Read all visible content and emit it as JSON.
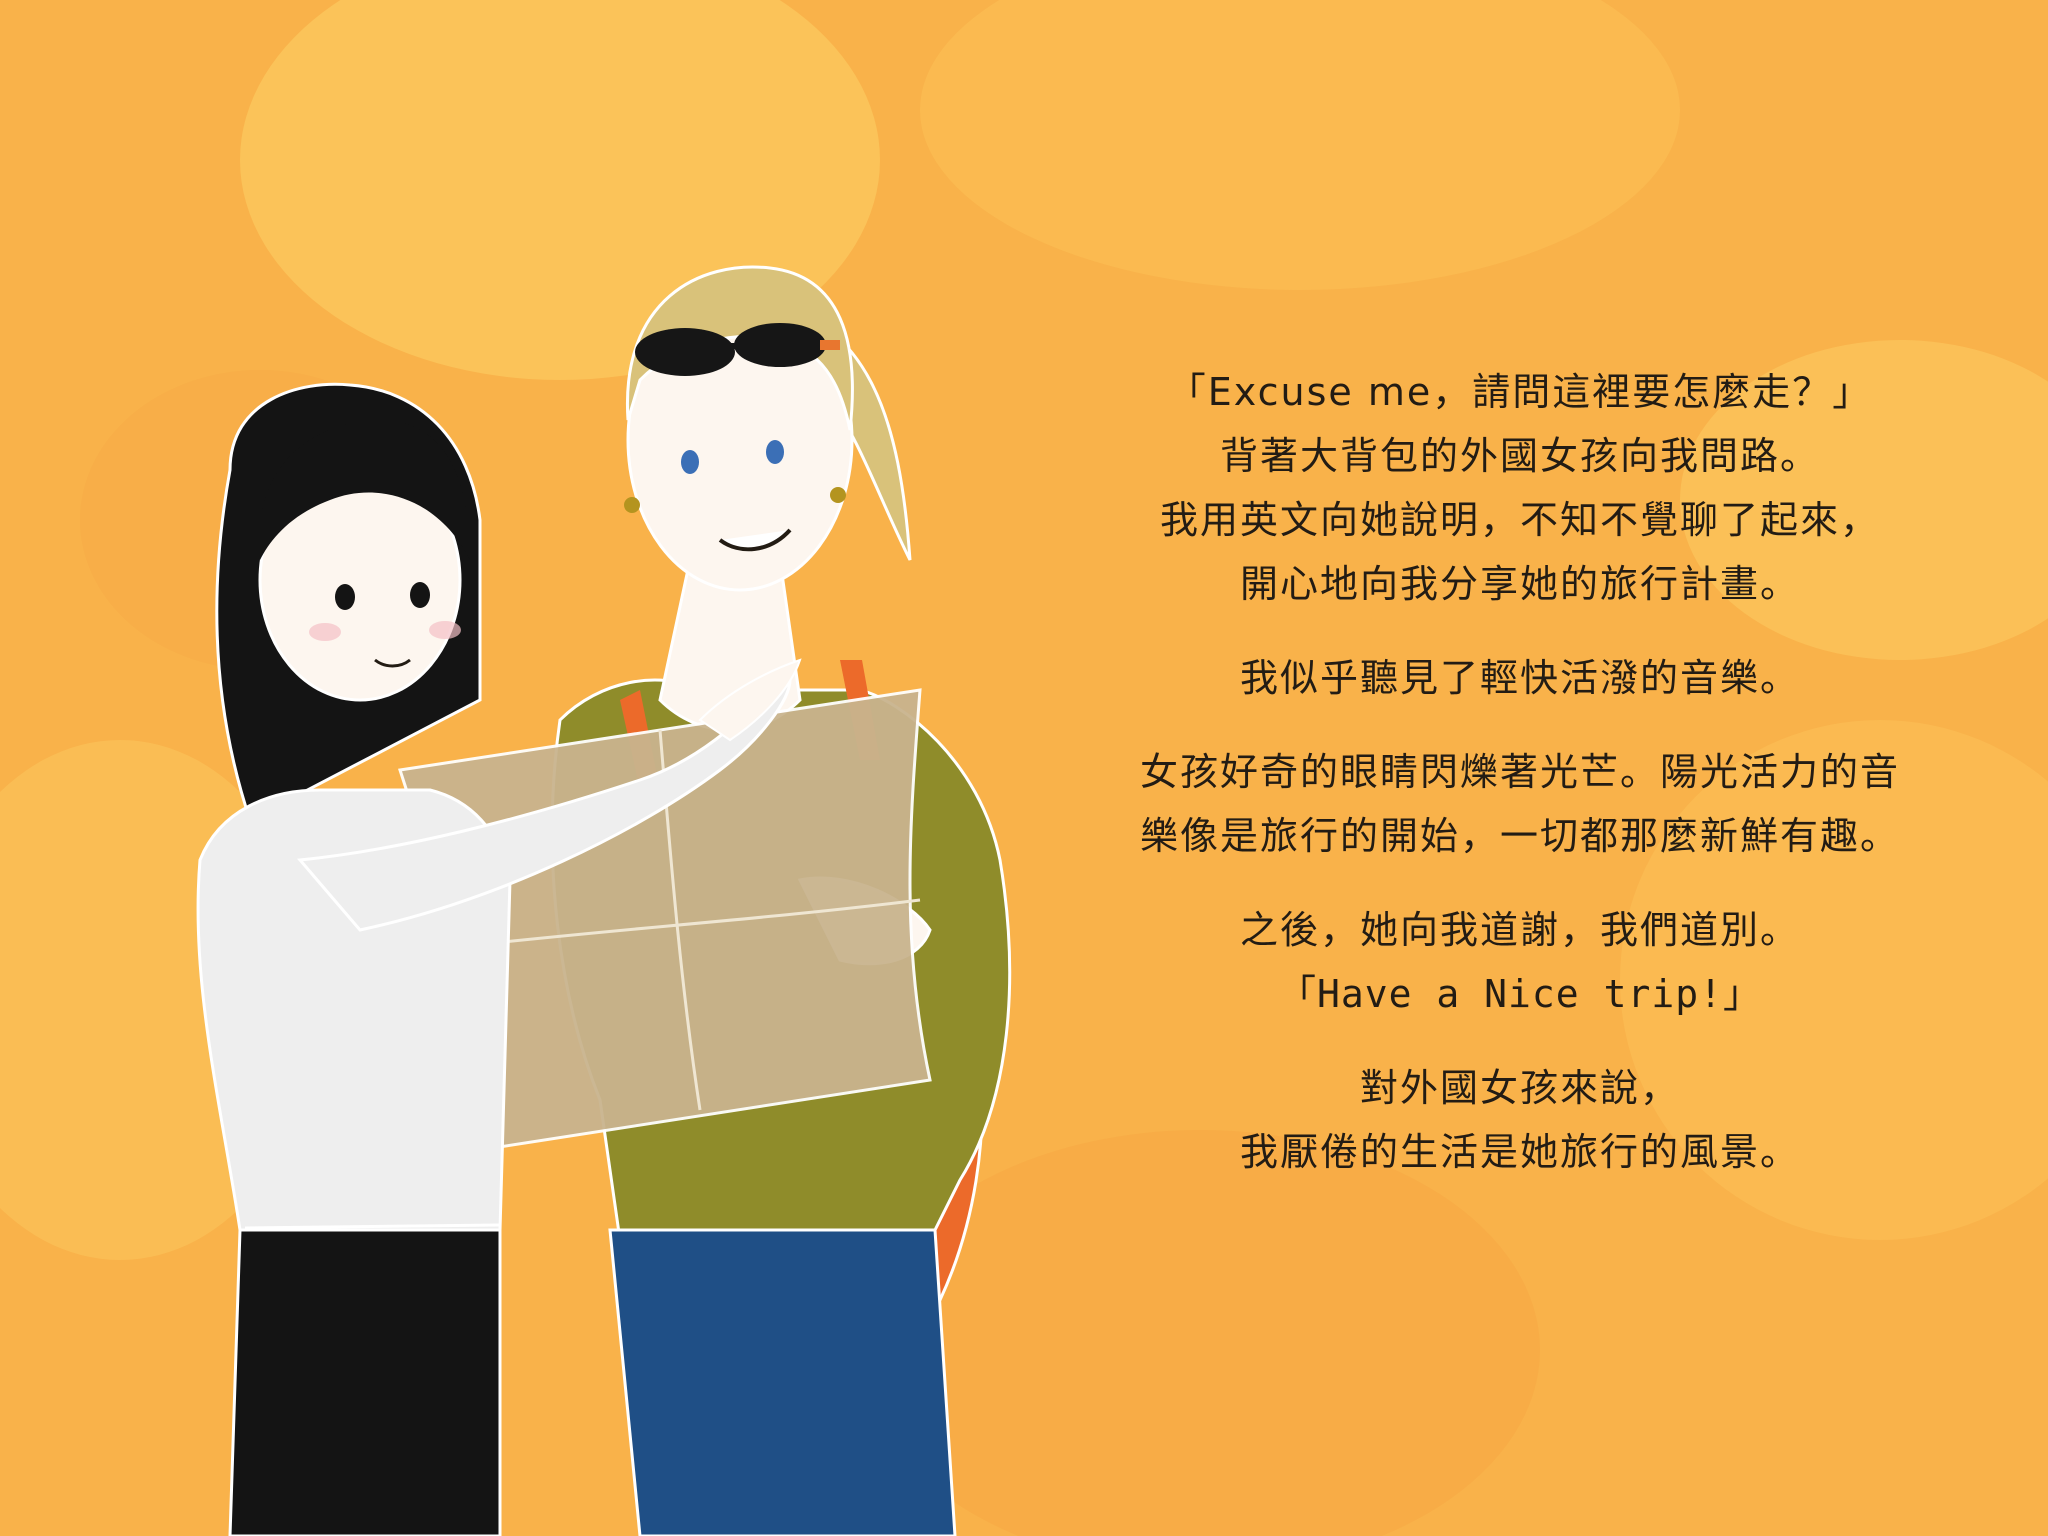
{
  "story": {
    "paragraphs": [
      {
        "lines": [
          "「Excuse me，請問這裡要怎麼走？」",
          "背著大背包的外國女孩向我問路。",
          "我用英文向她說明，不知不覺聊了起來，",
          "開心地向我分享她的旅行計畫。"
        ]
      },
      {
        "lines": [
          "我似乎聽見了輕快活潑的音樂。"
        ]
      },
      {
        "lines": [
          "女孩好奇的眼睛閃爍著光芒。陽光活力的音",
          "樂像是旅行的開始，一切都那麼新鮮有趣。"
        ]
      },
      {
        "lines": [
          "之後，她向我道謝，我們道別。",
          "「Have a Nice trip!」"
        ]
      },
      {
        "lines": [
          "對外國女孩來說，",
          "我厭倦的生活是她旅行的風景。"
        ]
      }
    ]
  },
  "colors": {
    "background": "#f9b24a",
    "blob_light": "#fcc65c",
    "blob_dark": "#f5a23f",
    "text": "#231c14",
    "hair_dark": "#141414",
    "hair_blonde": "#d9c27a",
    "shirt_white": "#eeeeee",
    "sweater_green": "#8f8c2a",
    "jeans_blue": "#1f4f86",
    "backpack_orange": "#ec6a2a",
    "map_beige": "#c9b48e",
    "skin": "#fdf6ef"
  },
  "icons": [
    "dark-haired-woman-illustration",
    "blonde-traveler-illustration",
    "map-illustration",
    "sunglasses-icon",
    "backpack-icon"
  ]
}
